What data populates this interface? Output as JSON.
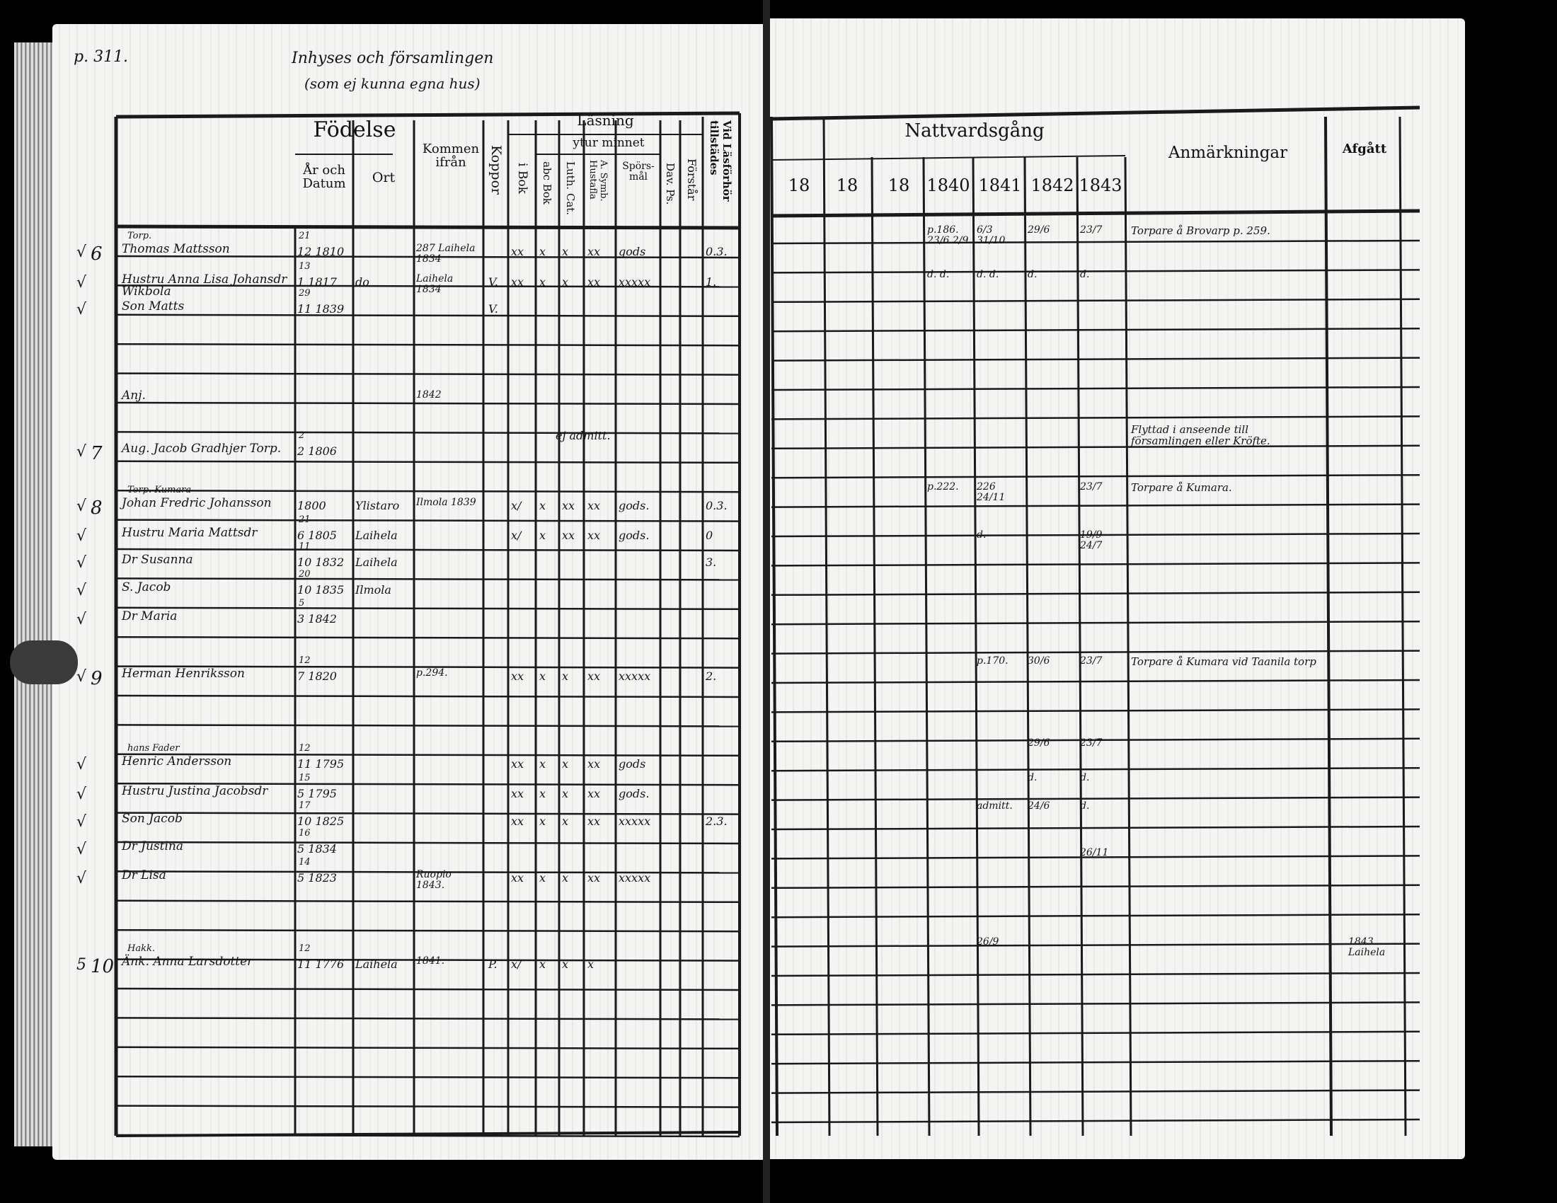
{
  "header_notes": {
    "page_ref": "p. 311.",
    "title_line1": "Inhyses och församlingen",
    "title_line2": "(som ej kunna egna hus)"
  },
  "left": {
    "headers": {
      "fodelse": "Födelse",
      "ar_och_datum": "År och Datum",
      "ort": "Ort",
      "kommen_ifran": "Kommen ifrån",
      "koppor": "Koppor",
      "lasning": "Läsning",
      "ytur_minnet": "ytur minnet",
      "i_bok": "i Bok",
      "abc_bok": "abc Bok",
      "luth_cat": "Luth. Cat.",
      "a_symb": "A. Symb. Hustafla",
      "sporsmal": "Spörs-mål",
      "dav_ps": "Dav. Ps.",
      "forstar": "Förstår",
      "vid_lasforhor": "Vid Läsförhör tillstädes"
    },
    "entries": [
      {
        "mark": "√",
        "no": "6",
        "title": "Torp.",
        "name": "Thomas Mattsson",
        "date_day": "21",
        "date_rest": "12 1810",
        "from": "287 Laihela 1834",
        "ibok": "xx",
        "abc": "x",
        "luth": "x",
        "asymb": "xx",
        "spors": "gods",
        "vid": "0.3."
      },
      {
        "mark": "√",
        "name": "Hustru Anna Lisa Johansdr Wikbola",
        "date_day": "13",
        "date_rest": "1 1817",
        "ort": "do",
        "from": "Laihela 1834",
        "koppor": "V.",
        "ibok": "xx",
        "abc": "x",
        "luth": "x",
        "asymb": "xx",
        "spors": "xxxxx",
        "vid": "1."
      },
      {
        "mark": "√",
        "name": "Son Matts",
        "date_day": "29",
        "date_rest": "11 1839",
        "koppor": "V."
      },
      {
        "name": "Anj.",
        "from": "1842"
      },
      {
        "mark": "√",
        "no": "7",
        "name": "Aug. Jacob Gradhjer Torp.",
        "date_day": "2",
        "date_rest": "2 1806",
        "note": "ej admitt."
      },
      {
        "mark": "√",
        "no": "8",
        "title": "Torp. Kumara",
        "name": "Johan Fredric Johansson",
        "date_rest": "1800",
        "ort": "Ylistaro",
        "from": "Ilmola 1839",
        "ibok": "x/",
        "abc": "x",
        "luth": "xx",
        "asymb": "xx",
        "spors": "gods.",
        "vid": "0.3."
      },
      {
        "mark": "√",
        "name": "Hustru Maria Mattsdr",
        "date_day": "21",
        "date_rest": "6 1805",
        "ort": "Laihela",
        "ibok": "x/",
        "abc": "x",
        "luth": "xx",
        "asymb": "xx",
        "spors": "gods.",
        "vid": "0"
      },
      {
        "mark": "√",
        "name": "Dr Susanna",
        "date_day": "11",
        "date_rest": "10 1832",
        "ort": "Laihela",
        "vid": "3."
      },
      {
        "mark": "√",
        "name": "S. Jacob",
        "date_day": "20",
        "date_rest": "10 1835",
        "ort": "Ilmola"
      },
      {
        "mark": "√",
        "name": "Dr Maria",
        "date_day": "5",
        "date_rest": "3 1842"
      },
      {
        "mark": "√",
        "no": "9",
        "name": "Herman Henriksson",
        "date_day": "12",
        "date_rest": "7 1820",
        "from": "p.294.",
        "ibok": "xx",
        "abc": "x",
        "luth": "x",
        "asymb": "xx",
        "spors": "xxxxx",
        "vid": "2."
      },
      {
        "mark": "√",
        "title": "hans Fader",
        "name": "Henric Andersson",
        "date_day": "12",
        "date_rest": "11 1795",
        "ibok": "xx",
        "abc": "x",
        "luth": "x",
        "asymb": "xx",
        "spors": "gods"
      },
      {
        "mark": "√",
        "name": "Hustru Justina Jacobsdr",
        "date_day": "15",
        "date_rest": "5 1795",
        "ibok": "xx",
        "abc": "x",
        "luth": "x",
        "asymb": "xx",
        "spors": "gods."
      },
      {
        "mark": "√",
        "name": "Son Jacob",
        "date_day": "17",
        "date_rest": "10 1825",
        "ibok": "xx",
        "abc": "x",
        "luth": "x",
        "asymb": "xx",
        "spors": "xxxxx",
        "vid": "2.3."
      },
      {
        "mark": "√",
        "name": "Dr Justina",
        "date_day": "16",
        "date_rest": "5 1834"
      },
      {
        "mark": "√",
        "name": "Dr Lisa",
        "date_day": "14",
        "date_rest": "5 1823",
        "from": "Ruopio 1843.",
        "ibok": "xx",
        "abc": "x",
        "luth": "x",
        "asymb": "xx",
        "spors": "xxxxx"
      },
      {
        "mark": "5",
        "no": "10",
        "title": "Hakk.",
        "name": "Änk. Anna Larsdotter",
        "date_day": "12",
        "date_rest": "11 1776",
        "ort": "Laihela",
        "from": "1841.",
        "koppor": "P.",
        "ibok": "x/",
        "abc": "x",
        "luth": "x",
        "asymb": "x"
      }
    ]
  },
  "right": {
    "headers": {
      "nattvardsgang": "Nattvardsgång",
      "years": [
        "18",
        "18",
        "18",
        "1840",
        "1841",
        "1842",
        "1843"
      ],
      "anmarkningar": "Anmärkningar",
      "afgatt": "Afgått"
    },
    "rows": [
      {
        "y1840": "p.186. 23/6 2/9",
        "y1841": "6/3 31/10",
        "y1842": "29/6",
        "y1843": "23/7",
        "remark": "Torpare å Brovarp p. 259."
      },
      {
        "y1840": "d.  d.",
        "y1841": "d.  d.",
        "y1842": "d.",
        "y1843": "d."
      },
      {},
      {},
      {
        "remark": "Flyttad i anseende till församlingen eller Kröfte."
      },
      {
        "y1840": "p.222.",
        "y1841": "226  24/11",
        "y1843": "23/7",
        "remark": "Torpare å Kumara."
      },
      {
        "y1841": "d.",
        "y1843": "19/9  24/7"
      },
      {},
      {},
      {},
      {
        "y1841": "p.170.",
        "y1842": "30/6",
        "y1843": "23/7",
        "remark": "Torpare å Kumara vid Taanila torp"
      },
      {
        "y1842": "29/6",
        "y1843": "23/7"
      },
      {
        "y1842": "d.",
        "y1843": "d."
      },
      {
        "y1841": "admitt.",
        "y1842": "24/6",
        "y1843": "d."
      },
      {
        "y1843": "26/11"
      },
      {},
      {
        "y1841": "26/9",
        "afgatt": "1843. Laihela"
      }
    ]
  }
}
